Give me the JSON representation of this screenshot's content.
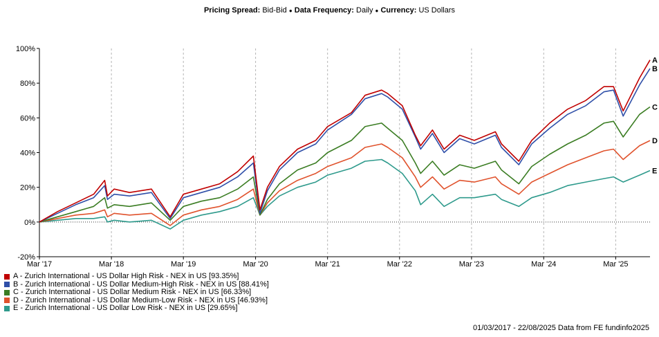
{
  "header": {
    "pricing_label": "Pricing Spread:",
    "pricing_value": "Bid-Bid",
    "frequency_label": "Data Frequency:",
    "frequency_value": "Daily",
    "currency_label": "Currency:",
    "currency_value": "US Dollars",
    "separator": "●"
  },
  "footer": {
    "text": "01/03/2017 - 22/08/2025 Data from FE fundinfo2025"
  },
  "chart_data": {
    "type": "line",
    "y_ticks": [
      "100%",
      "80%",
      "60%",
      "40%",
      "20%",
      "0%",
      "-20%"
    ],
    "ylim": [
      -20,
      100
    ],
    "x_ticks": [
      "Mar '17",
      "Mar '18",
      "Mar '19",
      "Mar '20",
      "Mar '21",
      "Mar '22",
      "Mar '23",
      "Mar '24",
      "Mar '25"
    ],
    "x_tick_dates": [
      "2017-03-01",
      "2018-03-01",
      "2019-03-01",
      "2020-03-01",
      "2021-03-01",
      "2022-03-01",
      "2023-03-01",
      "2024-03-01",
      "2025-03-01"
    ],
    "xlim": [
      "2017-03-01",
      "2025-08-22"
    ],
    "grid": "vertical dashed at x ticks, dotted baseline at 0%",
    "series": [
      {
        "name": "A - Zurich International - US Dollar High Risk - NEX in US [93.35%]",
        "end_label": "A",
        "color": "#c00000",
        "x": [
          "2017-03-01",
          "2017-06-01",
          "2017-09-01",
          "2017-12-01",
          "2018-01-26",
          "2018-02-09",
          "2018-03-15",
          "2018-06-01",
          "2018-09-20",
          "2018-12-24",
          "2019-03-01",
          "2019-06-01",
          "2019-09-01",
          "2019-12-01",
          "2020-02-19",
          "2020-03-23",
          "2020-04-30",
          "2020-06-30",
          "2020-09-30",
          "2020-12-31",
          "2021-03-01",
          "2021-06-30",
          "2021-09-07",
          "2021-11-30",
          "2021-12-31",
          "2022-03-15",
          "2022-05-20",
          "2022-06-16",
          "2022-08-15",
          "2022-10-13",
          "2022-12-31",
          "2023-03-15",
          "2023-06-30",
          "2023-07-31",
          "2023-10-27",
          "2023-12-31",
          "2024-03-31",
          "2024-06-30",
          "2024-09-30",
          "2024-12-31",
          "2025-02-18",
          "2025-04-08",
          "2025-06-30",
          "2025-08-22"
        ],
        "y": [
          0,
          6,
          11,
          16,
          24,
          15,
          19,
          17,
          19,
          3,
          16,
          19,
          22,
          29,
          38,
          7,
          20,
          32,
          42,
          47,
          55,
          63,
          73,
          76,
          74,
          67,
          50,
          44,
          53,
          42,
          50,
          47,
          52,
          45,
          35,
          47,
          57,
          65,
          70,
          78,
          78,
          64,
          83,
          93.35
        ]
      },
      {
        "name": "B - Zurich International - US Dollar Medium-High Risk - NEX in US [88.41%]",
        "end_label": "B",
        "color": "#2f4fa8",
        "x": [
          "2017-03-01",
          "2017-06-01",
          "2017-09-01",
          "2017-12-01",
          "2018-01-26",
          "2018-02-09",
          "2018-03-15",
          "2018-06-01",
          "2018-09-20",
          "2018-12-24",
          "2019-03-01",
          "2019-06-01",
          "2019-09-01",
          "2019-12-01",
          "2020-02-19",
          "2020-03-23",
          "2020-04-30",
          "2020-06-30",
          "2020-09-30",
          "2020-12-31",
          "2021-03-01",
          "2021-06-30",
          "2021-09-07",
          "2021-11-30",
          "2021-12-31",
          "2022-03-15",
          "2022-05-20",
          "2022-06-16",
          "2022-08-15",
          "2022-10-13",
          "2022-12-31",
          "2023-03-15",
          "2023-06-30",
          "2023-07-31",
          "2023-10-27",
          "2023-12-31",
          "2024-03-31",
          "2024-06-30",
          "2024-09-30",
          "2024-12-31",
          "2025-02-18",
          "2025-04-08",
          "2025-06-30",
          "2025-08-22"
        ],
        "y": [
          0,
          5,
          10,
          14,
          21,
          13,
          16,
          15,
          17,
          2,
          14,
          17,
          20,
          26,
          34,
          5,
          18,
          30,
          40,
          45,
          53,
          62,
          71,
          74,
          72,
          65,
          49,
          42,
          51,
          40,
          48,
          45,
          50,
          43,
          33,
          45,
          54,
          62,
          67,
          75,
          76,
          61,
          79,
          88.41
        ]
      },
      {
        "name": "C - Zurich International - US Dollar Medium Risk - NEX in US [66.33%]",
        "end_label": "C",
        "color": "#3b7d23",
        "x": [
          "2017-03-01",
          "2017-06-01",
          "2017-09-01",
          "2017-12-01",
          "2018-01-26",
          "2018-02-09",
          "2018-03-15",
          "2018-06-01",
          "2018-09-20",
          "2018-12-24",
          "2019-03-01",
          "2019-06-01",
          "2019-09-01",
          "2019-12-01",
          "2020-02-19",
          "2020-03-23",
          "2020-04-30",
          "2020-06-30",
          "2020-09-30",
          "2020-12-31",
          "2021-03-01",
          "2021-06-30",
          "2021-09-07",
          "2021-11-30",
          "2021-12-31",
          "2022-03-15",
          "2022-05-20",
          "2022-06-16",
          "2022-08-15",
          "2022-10-13",
          "2022-12-31",
          "2023-03-15",
          "2023-06-30",
          "2023-07-31",
          "2023-10-27",
          "2023-12-31",
          "2024-03-31",
          "2024-06-30",
          "2024-09-30",
          "2024-12-31",
          "2025-02-18",
          "2025-04-08",
          "2025-06-30",
          "2025-08-22"
        ],
        "y": [
          0,
          3,
          6,
          9,
          14,
          8,
          10,
          9,
          11,
          1,
          9,
          12,
          14,
          19,
          26,
          4,
          13,
          22,
          30,
          34,
          40,
          47,
          55,
          57,
          54,
          47,
          34,
          28,
          35,
          27,
          33,
          31,
          35,
          30,
          22,
          32,
          39,
          45,
          50,
          57,
          58,
          49,
          62,
          66.33
        ]
      },
      {
        "name": "D - Zurich International - US Dollar Medium-Low Risk - NEX in US [46.93%]",
        "end_label": "D",
        "color": "#e0522c",
        "x": [
          "2017-03-01",
          "2017-06-01",
          "2017-09-01",
          "2017-12-01",
          "2018-01-26",
          "2018-02-09",
          "2018-03-15",
          "2018-06-01",
          "2018-09-20",
          "2018-12-24",
          "2019-03-01",
          "2019-06-01",
          "2019-09-01",
          "2019-12-01",
          "2020-02-19",
          "2020-03-23",
          "2020-04-30",
          "2020-06-30",
          "2020-09-30",
          "2020-12-31",
          "2021-03-01",
          "2021-06-30",
          "2021-09-07",
          "2021-11-30",
          "2021-12-31",
          "2022-03-15",
          "2022-05-20",
          "2022-06-16",
          "2022-08-15",
          "2022-10-13",
          "2022-12-31",
          "2023-03-15",
          "2023-06-30",
          "2023-07-31",
          "2023-10-27",
          "2023-12-31",
          "2024-03-31",
          "2024-06-30",
          "2024-09-30",
          "2024-12-31",
          "2025-02-18",
          "2025-04-08",
          "2025-06-30",
          "2025-08-22"
        ],
        "y": [
          0,
          2,
          4,
          5,
          7,
          3,
          5,
          4,
          5,
          -2,
          4,
          7,
          9,
          13,
          19,
          4,
          11,
          18,
          24,
          28,
          32,
          37,
          43,
          45,
          43,
          37,
          26,
          20,
          26,
          19,
          24,
          23,
          26,
          22,
          16,
          23,
          28,
          33,
          37,
          41,
          42,
          36,
          44,
          46.93
        ]
      },
      {
        "name": "E - Zurich International - US Dollar Low Risk - NEX in US [29.65%]",
        "end_label": "E",
        "color": "#2e9a8c",
        "x": [
          "2017-03-01",
          "2017-06-01",
          "2017-09-01",
          "2017-12-01",
          "2018-01-26",
          "2018-02-09",
          "2018-03-15",
          "2018-06-01",
          "2018-09-20",
          "2018-12-24",
          "2019-03-01",
          "2019-06-01",
          "2019-09-01",
          "2019-12-01",
          "2020-02-19",
          "2020-03-23",
          "2020-04-30",
          "2020-06-30",
          "2020-09-30",
          "2020-12-31",
          "2021-03-01",
          "2021-06-30",
          "2021-09-07",
          "2021-11-30",
          "2021-12-31",
          "2022-03-15",
          "2022-05-20",
          "2022-06-16",
          "2022-08-15",
          "2022-10-13",
          "2022-12-31",
          "2023-03-15",
          "2023-06-30",
          "2023-07-31",
          "2023-10-27",
          "2023-12-31",
          "2024-03-31",
          "2024-06-30",
          "2024-09-30",
          "2024-12-31",
          "2025-02-18",
          "2025-04-08",
          "2025-06-30",
          "2025-08-22"
        ],
        "y": [
          0,
          1,
          2,
          2,
          3,
          0,
          1,
          0,
          1,
          -4,
          1,
          4,
          6,
          9,
          14,
          4,
          9,
          15,
          20,
          23,
          27,
          31,
          35,
          36,
          34,
          28,
          18,
          10,
          16,
          9,
          14,
          14,
          16,
          13,
          9,
          14,
          17,
          21,
          23,
          25,
          26,
          23,
          27,
          29.65
        ]
      }
    ]
  }
}
